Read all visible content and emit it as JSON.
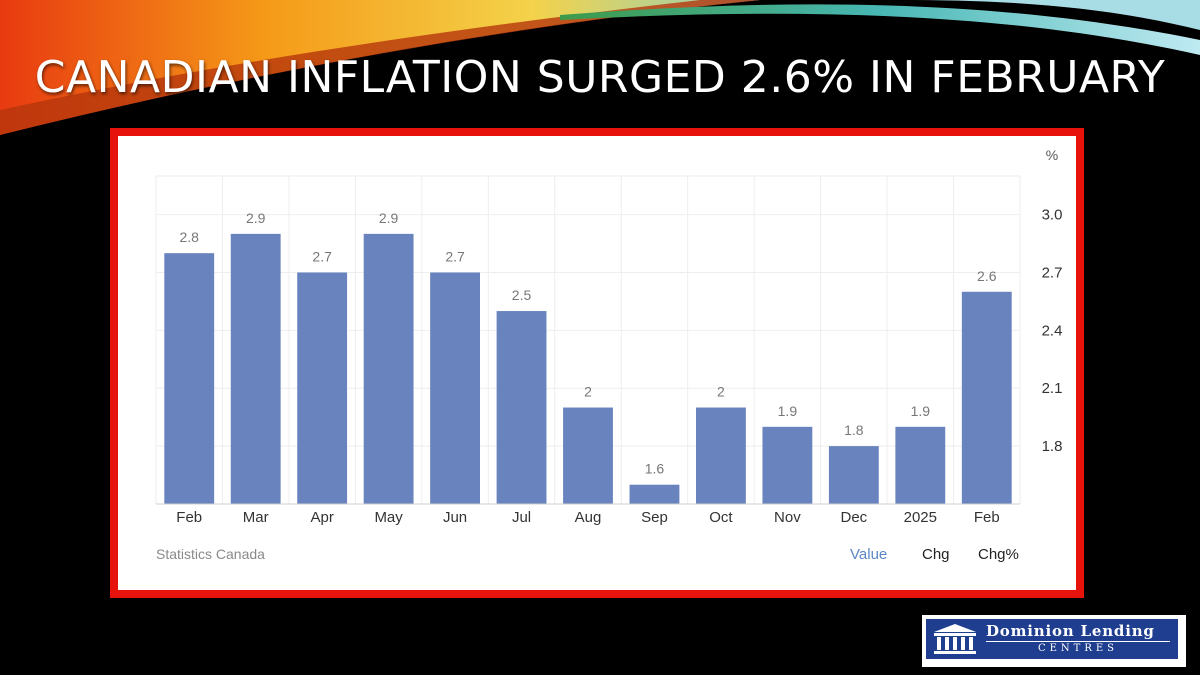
{
  "slide": {
    "title": "CANADIAN INFLATION SURGED 2.6% IN FEBRUARY"
  },
  "chart_data": {
    "type": "bar",
    "categories": [
      "Feb",
      "Mar",
      "Apr",
      "May",
      "Jun",
      "Jul",
      "Aug",
      "Sep",
      "Oct",
      "Nov",
      "Dec",
      "2025",
      "Feb"
    ],
    "values": [
      2.8,
      2.9,
      2.7,
      2.9,
      2.7,
      2.5,
      2,
      1.6,
      2,
      1.9,
      1.8,
      1.9,
      2.6
    ],
    "value_labels": [
      "2.8",
      "2.9",
      "2.7",
      "2.9",
      "2.7",
      "2.5",
      "2",
      "1.6",
      "2",
      "1.9",
      "1.8",
      "1.9",
      "2.6"
    ],
    "ylabel": "%",
    "yticks": [
      1.8,
      2.1,
      2.4,
      2.7,
      3.0
    ],
    "ytick_labels": [
      "1.8",
      "2.1",
      "2.4",
      "2.7",
      "3.0"
    ],
    "ylim": [
      1.5,
      3.2
    ],
    "y_axis_side": "right",
    "grid": true,
    "bar_color": "#6883bd",
    "source": "Statistics Canada",
    "toggles": [
      "Value",
      "Chg",
      "Chg%"
    ],
    "active_toggle": "Value"
  },
  "colors": {
    "frame": "#e8120c",
    "active_toggle": "#5b86c7",
    "logo_bg": "#1f3e8f"
  },
  "logo": {
    "name": "Dominion Lending",
    "sub": "CENTRES",
    "icon": "columns-building-icon"
  }
}
